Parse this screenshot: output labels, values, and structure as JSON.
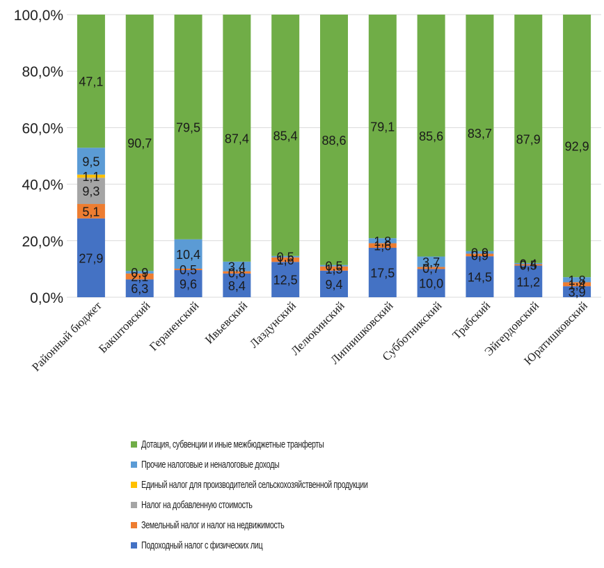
{
  "chart_data": {
    "type": "bar",
    "stacked": true,
    "percent_stacked": true,
    "categories": [
      "Районный бюджет",
      "Бакштовский",
      "Гераненский",
      "Ивьевский",
      "Лаздунский",
      "Лелюкинский",
      "Липнишковский",
      "Субботникский",
      "Трабский",
      "Эйгердовский",
      "Юратишковский"
    ],
    "y_tick_labels": [
      "0,0%",
      "20,0%",
      "40,0%",
      "60,0%",
      "80,0%",
      "100,0%"
    ],
    "ylim": [
      0,
      100
    ],
    "grid": true,
    "legend_position": "bottom",
    "series": [
      {
        "name": "Подоходный налог с физических лиц",
        "color": "#4472c4",
        "values": [
          27.9,
          6.3,
          9.6,
          8.4,
          12.5,
          9.4,
          17.5,
          10.0,
          14.5,
          11.2,
          3.9
        ],
        "labels": [
          "27,9",
          "6,3",
          "9,6",
          "8,4",
          "12,5",
          "9,4",
          "17,5",
          "10,0",
          "14,5",
          "11,2",
          "3,9"
        ]
      },
      {
        "name": "Земельный налог и налог на недвижимость",
        "color": "#ed7d31",
        "values": [
          5.1,
          2.1,
          0.5,
          0.8,
          1.6,
          1.5,
          1.6,
          0.7,
          0.9,
          0.5,
          1.4
        ],
        "labels": [
          "5,1",
          "2,1",
          "0,5",
          "0,8",
          "1,6",
          "1,5",
          "1,6",
          "0,7",
          "0,9",
          "0,5",
          "1,4"
        ]
      },
      {
        "name": "Налог на добавленную стоимость",
        "color": "#a5a5a5",
        "values": [
          9.3,
          0,
          0,
          0,
          0,
          0,
          0,
          0,
          0,
          0,
          0
        ],
        "labels": [
          "9,3",
          "",
          "",
          "",
          "",
          "",
          "",
          "",
          "",
          "",
          ""
        ]
      },
      {
        "name": "Единый налог для производителей сельскохозяйственной продукции",
        "color": "#ffc000",
        "values": [
          1.1,
          0,
          0,
          0,
          0,
          0,
          0,
          0,
          0,
          0,
          0
        ],
        "labels": [
          "1,1",
          "",
          "",
          "",
          "",
          "",
          "",
          "",
          "",
          "",
          ""
        ]
      },
      {
        "name": "Прочие налоговые и неналоговые доходы",
        "color": "#5b9bd5",
        "values": [
          9.5,
          0.9,
          10.4,
          3.4,
          0.5,
          0.5,
          1.8,
          3.7,
          0.9,
          0.4,
          1.8
        ],
        "labels": [
          "9,5",
          "0,9",
          "10,4",
          "3,4",
          "0,5",
          "0,5",
          "1,8",
          "3,7",
          "0,9",
          "0,4",
          "1,8"
        ]
      },
      {
        "name": "Дотация, субвенции и иные межбюджетные транферты",
        "color": "#70ad47",
        "values": [
          47.1,
          90.7,
          79.5,
          87.4,
          85.4,
          88.6,
          79.1,
          85.6,
          83.7,
          87.9,
          92.9
        ],
        "labels": [
          "47,1",
          "90,7",
          "79,5",
          "87,4",
          "85,4",
          "88,6",
          "79,1",
          "85,6",
          "83,7",
          "87,9",
          "92,9"
        ]
      }
    ]
  },
  "legend": [
    {
      "label": "Дотация, субвенции и иные межбюджетные транферты",
      "color": "#70ad47"
    },
    {
      "label": "Прочие налоговые и неналоговые доходы",
      "color": "#5b9bd5"
    },
    {
      "label": "Единый налог для производителей сельскохозяйственной продукции",
      "color": "#ffc000"
    },
    {
      "label": "Налог на добавленную стоимость",
      "color": "#a5a5a5"
    },
    {
      "label": "Земельный налог и налог на недвижимость",
      "color": "#ed7d31"
    },
    {
      "label": "Подоходный налог с физических лиц",
      "color": "#4472c4"
    }
  ]
}
